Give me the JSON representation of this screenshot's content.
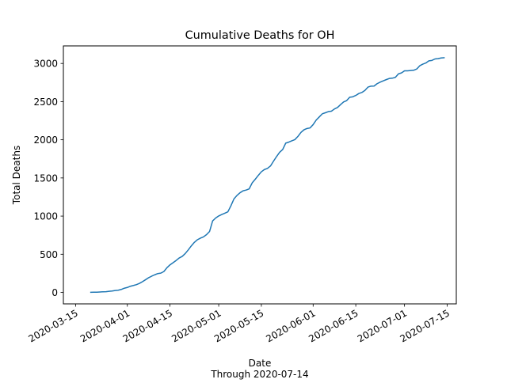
{
  "chart_data": {
    "type": "line",
    "title": "Cumulative Deaths for OH",
    "xlabel": "Date",
    "xlabel_sub": "Through 2020-07-14",
    "ylabel": "Total Deaths",
    "xlim": [
      "2020-03-11",
      "2020-07-18"
    ],
    "ylim": [
      -150,
      3230
    ],
    "x_ticks": [
      "2020-03-15",
      "2020-04-01",
      "2020-04-15",
      "2020-05-01",
      "2020-05-15",
      "2020-06-01",
      "2020-06-15",
      "2020-07-01",
      "2020-07-15"
    ],
    "y_ticks": [
      0,
      500,
      1000,
      1500,
      2000,
      2500,
      3000
    ],
    "grid": false,
    "color": "#1f77b4",
    "series": [
      {
        "x": [
          "2020-03-20",
          "2020-03-21",
          "2020-03-22",
          "2020-03-23",
          "2020-03-24",
          "2020-03-25",
          "2020-03-26",
          "2020-03-27",
          "2020-03-28",
          "2020-03-29",
          "2020-03-30",
          "2020-03-31",
          "2020-04-01",
          "2020-04-02",
          "2020-04-03",
          "2020-04-04",
          "2020-04-05",
          "2020-04-06",
          "2020-04-07",
          "2020-04-08",
          "2020-04-09",
          "2020-04-10",
          "2020-04-11",
          "2020-04-12",
          "2020-04-13",
          "2020-04-14",
          "2020-04-15",
          "2020-04-16",
          "2020-04-17",
          "2020-04-18",
          "2020-04-19",
          "2020-04-20",
          "2020-04-21",
          "2020-04-22",
          "2020-04-23",
          "2020-04-24",
          "2020-04-25",
          "2020-04-26",
          "2020-04-27",
          "2020-04-28",
          "2020-04-29",
          "2020-04-30",
          "2020-05-01",
          "2020-05-02",
          "2020-05-03",
          "2020-05-04",
          "2020-05-05",
          "2020-05-06",
          "2020-05-07",
          "2020-05-08",
          "2020-05-09",
          "2020-05-10",
          "2020-05-11",
          "2020-05-12",
          "2020-05-13",
          "2020-05-14",
          "2020-05-15",
          "2020-05-16",
          "2020-05-17",
          "2020-05-18",
          "2020-05-19",
          "2020-05-20",
          "2020-05-21",
          "2020-05-22",
          "2020-05-23",
          "2020-05-24",
          "2020-05-25",
          "2020-05-26",
          "2020-05-27",
          "2020-05-28",
          "2020-05-29",
          "2020-05-30",
          "2020-05-31",
          "2020-06-01",
          "2020-06-02",
          "2020-06-03",
          "2020-06-04",
          "2020-06-05",
          "2020-06-06",
          "2020-06-07",
          "2020-06-08",
          "2020-06-09",
          "2020-06-10",
          "2020-06-11",
          "2020-06-12",
          "2020-06-13",
          "2020-06-14",
          "2020-06-15",
          "2020-06-16",
          "2020-06-17",
          "2020-06-18",
          "2020-06-19",
          "2020-06-20",
          "2020-06-21",
          "2020-06-22",
          "2020-06-23",
          "2020-06-24",
          "2020-06-25",
          "2020-06-26",
          "2020-06-27",
          "2020-06-28",
          "2020-06-29",
          "2020-06-30",
          "2020-07-01",
          "2020-07-02",
          "2020-07-03",
          "2020-07-04",
          "2020-07-05",
          "2020-07-06",
          "2020-07-07",
          "2020-07-08",
          "2020-07-09",
          "2020-07-10",
          "2020-07-11",
          "2020-07-12",
          "2020-07-13",
          "2020-07-14"
        ],
        "y": [
          2,
          3,
          3,
          6,
          8,
          10,
          15,
          19,
          25,
          29,
          39,
          55,
          65,
          81,
          91,
          102,
          119,
          142,
          167,
          193,
          213,
          231,
          247,
          253,
          274,
          324,
          361,
          389,
          418,
          451,
          471,
          509,
          557,
          610,
          656,
          690,
          711,
          728,
          757,
          799,
          937,
          975,
          1002,
          1021,
          1038,
          1056,
          1135,
          1225,
          1271,
          1306,
          1331,
          1341,
          1357,
          1436,
          1483,
          1534,
          1581,
          1610,
          1625,
          1657,
          1720,
          1781,
          1836,
          1872,
          1956,
          1969,
          1987,
          2002,
          2044,
          2097,
          2131,
          2148,
          2155,
          2199,
          2258,
          2299,
          2340,
          2354,
          2369,
          2375,
          2404,
          2423,
          2461,
          2496,
          2513,
          2557,
          2563,
          2581,
          2606,
          2620,
          2647,
          2690,
          2703,
          2704,
          2735,
          2755,
          2772,
          2788,
          2803,
          2807,
          2818,
          2863,
          2876,
          2903,
          2903,
          2907,
          2911,
          2927,
          2970,
          2991,
          3006,
          3034,
          3040,
          3059,
          3063,
          3072,
          3075
        ]
      }
    ]
  }
}
